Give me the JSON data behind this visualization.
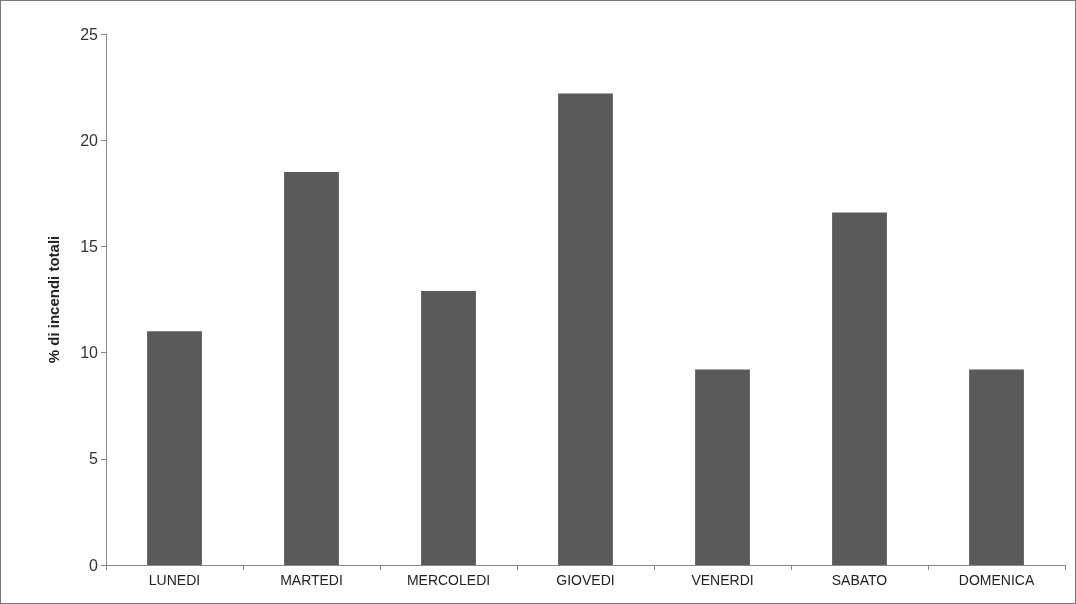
{
  "chart_data": {
    "type": "bar",
    "ylabel": "% di incendi totali",
    "categories": [
      "LUNEDI",
      "MARTEDI",
      "MERCOLEDI",
      "GIOVEDI",
      "VENERDI",
      "SABATO",
      "DOMENICA"
    ],
    "values": [
      11.0,
      18.5,
      12.9,
      22.2,
      9.2,
      16.6,
      9.2
    ],
    "color": "#5a5a5a",
    "ylim": [
      0,
      25
    ],
    "yticks": [
      0,
      5,
      10,
      15,
      20,
      25
    ],
    "grid": false
  }
}
